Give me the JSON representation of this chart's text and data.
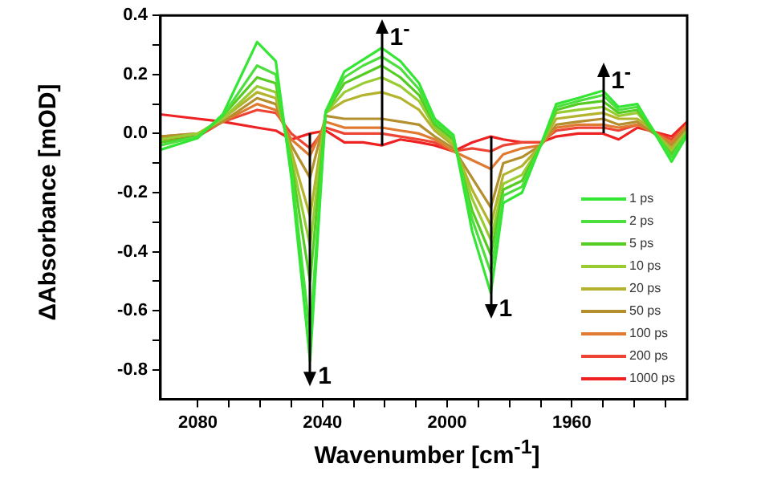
{
  "chart_data": {
    "type": "line",
    "xlabel": "Wavenumber [cm$^{-1}$]",
    "ylabel": "ΔAbsorbance [mOD]",
    "x": [
      2092,
      2080,
      2072,
      2061,
      2055,
      2050,
      2044,
      2039,
      2033,
      2027,
      2021,
      2015,
      2009,
      2004,
      1998,
      1992,
      1986,
      1982,
      1976,
      1970,
      1965,
      1958,
      1950,
      1945,
      1939,
      1935,
      1928,
      1923
    ],
    "xlim": [
      2092,
      1923
    ],
    "xticks": [
      2080,
      {
        "value": 2070,
        "label": null
      },
      {
        "value": 2060,
        "label": null
      },
      {
        "value": 2050,
        "label": null
      },
      2040,
      {
        "value": 2030,
        "label": null
      },
      {
        "value": 2020,
        "label": null
      },
      {
        "value": 2010,
        "label": null
      },
      2000,
      {
        "value": 1990,
        "label": null
      },
      {
        "value": 1980,
        "label": null
      },
      {
        "value": 1970,
        "label": null
      },
      1960,
      {
        "value": 1950,
        "label": null
      },
      {
        "value": 1940,
        "label": null
      },
      {
        "value": 1930,
        "label": null
      }
    ],
    "ylim": [
      -0.9,
      0.4
    ],
    "yticks": [
      0.4,
      {
        "value": 0.3,
        "label": null
      },
      0.2,
      {
        "value": 0.1,
        "label": null
      },
      {
        "value": 0,
        "label": "0.0"
      },
      {
        "value": -0.1,
        "label": null
      },
      -0.2,
      {
        "value": -0.3,
        "label": null
      },
      -0.4,
      {
        "value": -0.5,
        "label": null
      },
      -0.6,
      {
        "value": -0.7,
        "label": null
      },
      -0.8
    ],
    "grid": false,
    "legend": "bottom right",
    "marker": "none",
    "line_style": "solid",
    "series": [
      {
        "name": "1 ps",
        "color": "#33e633",
        "values": [
          -0.055,
          -0.015,
          0.065,
          0.31,
          0.245,
          -0.15,
          -0.77,
          0.075,
          0.21,
          0.25,
          0.29,
          0.245,
          0.17,
          0.05,
          -0.005,
          -0.33,
          -0.54,
          -0.235,
          -0.2,
          -0.04,
          0.1,
          0.12,
          0.145,
          0.09,
          0.1,
          0.03,
          -0.095,
          -0.005
        ]
      },
      {
        "name": "2 ps",
        "color": "#4ddf3d",
        "values": [
          -0.04,
          -0.01,
          0.06,
          0.23,
          0.2,
          -0.12,
          -0.68,
          0.07,
          0.19,
          0.23,
          0.26,
          0.22,
          0.15,
          0.04,
          -0.01,
          -0.29,
          -0.47,
          -0.21,
          -0.18,
          -0.04,
          0.09,
          0.11,
          0.13,
          0.08,
          0.09,
          0.03,
          -0.08,
          0
        ]
      },
      {
        "name": "5 ps",
        "color": "#55cc22",
        "values": [
          -0.03,
          -0.01,
          0.06,
          0.19,
          0.17,
          -0.1,
          -0.5,
          0.07,
          0.17,
          0.2,
          0.23,
          0.19,
          0.13,
          0.03,
          -0.02,
          -0.26,
          -0.41,
          -0.19,
          -0.16,
          -0.04,
          0.08,
          0.1,
          0.11,
          0.07,
          0.08,
          0.02,
          -0.07,
          0
        ]
      },
      {
        "name": "10 ps",
        "color": "#99cc33",
        "values": [
          -0.02,
          0,
          0.05,
          0.16,
          0.14,
          -0.08,
          -0.38,
          0.07,
          0.14,
          0.17,
          0.19,
          0.16,
          0.11,
          0.02,
          -0.03,
          -0.22,
          -0.36,
          -0.17,
          -0.14,
          -0.04,
          0.07,
          0.08,
          0.09,
          0.06,
          0.07,
          0.02,
          -0.06,
          0.01
        ]
      },
      {
        "name": "20 ps",
        "color": "#b3b32e",
        "values": [
          -0.02,
          0,
          0.05,
          0.14,
          0.12,
          -0.06,
          -0.28,
          0.07,
          0.11,
          0.13,
          0.14,
          0.12,
          0.08,
          0.01,
          -0.04,
          -0.19,
          -0.31,
          -0.14,
          -0.11,
          -0.04,
          0.05,
          0.06,
          0.07,
          0.05,
          0.05,
          0.02,
          -0.05,
          0.01
        ]
      },
      {
        "name": "50 ps",
        "color": "#b38f2e",
        "values": [
          -0.01,
          0,
          0.04,
          0.12,
          0.1,
          -0.04,
          -0.15,
          0.06,
          0.05,
          0.05,
          0.05,
          0.04,
          0.03,
          -0.01,
          -0.05,
          -0.15,
          -0.25,
          -0.1,
          -0.08,
          -0.04,
          0.03,
          0.04,
          0.05,
          0.03,
          0.04,
          0.01,
          -0.04,
          0.02
        ]
      },
      {
        "name": "100 ps",
        "color": "#e07a30",
        "values": [
          -0.01,
          0,
          0.04,
          0.1,
          0.08,
          -0.02,
          -0.075,
          0.04,
          0.02,
          0.02,
          0.02,
          0.01,
          0,
          -0.02,
          -0.06,
          -0.09,
          -0.12,
          -0.07,
          -0.05,
          -0.04,
          0.02,
          0.03,
          0.03,
          0.02,
          0.03,
          0.01,
          -0.03,
          0.03
        ]
      },
      {
        "name": "200 ps",
        "color": "#ee4433",
        "values": [
          -0.02,
          -0.01,
          0.04,
          0.08,
          0.07,
          0,
          -0.05,
          0.02,
          0,
          0,
          0,
          -0.01,
          -0.02,
          -0.03,
          -0.06,
          -0.05,
          -0.06,
          -0.04,
          -0.03,
          -0.03,
          0.01,
          0.02,
          0.02,
          0.01,
          0.03,
          0.01,
          -0.02,
          0.03
        ]
      },
      {
        "name": "1000 ps",
        "color": "#ee2222",
        "values": [
          0.065,
          0.05,
          0.04,
          0.02,
          0.01,
          -0.02,
          0,
          0.01,
          -0.03,
          -0.03,
          -0.04,
          -0.02,
          -0.03,
          -0.04,
          -0.06,
          -0.03,
          -0.01,
          -0.02,
          -0.03,
          -0.03,
          -0.01,
          0,
          0,
          -0.02,
          0.02,
          0.01,
          -0.01,
          0.04
        ]
      }
    ],
    "annotations": [
      {
        "text": "1",
        "x": 2044,
        "y": -0.77
      },
      {
        "text": "1$^{-}$",
        "x": 2021,
        "y": 0.29
      },
      {
        "text": "1",
        "x": 1986,
        "y": -0.54
      },
      {
        "text": "1$^{-}$",
        "x": 1950,
        "y": 0.145
      }
    ]
  }
}
